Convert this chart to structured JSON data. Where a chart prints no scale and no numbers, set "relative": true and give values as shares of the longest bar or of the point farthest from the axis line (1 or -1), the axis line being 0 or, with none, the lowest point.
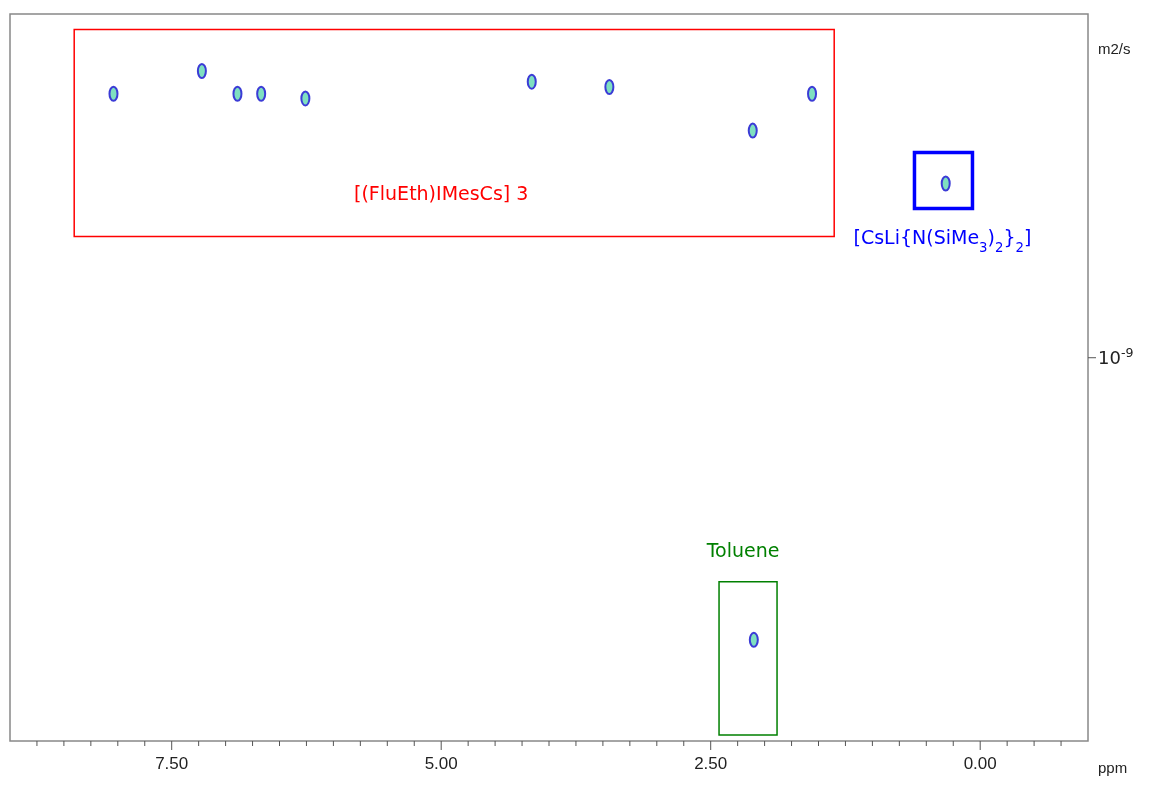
{
  "chart_data": {
    "type": "scatter",
    "xlabel": "ppm",
    "ylabel": "m2/s",
    "relative": true,
    "marker": "circle",
    "grid": false,
    "xlim": [
      9.0,
      -1.0
    ],
    "xticks": [
      {
        "value": 8.75,
        "label": null
      },
      {
        "value": 8.5,
        "label": null
      },
      {
        "value": 8.25,
        "label": null
      },
      {
        "value": 8.0,
        "label": null
      },
      {
        "value": 7.75,
        "label": null
      },
      {
        "value": 7.5,
        "label": "7.50"
      },
      {
        "value": 7.25,
        "label": null
      },
      {
        "value": 7.0,
        "label": null
      },
      {
        "value": 6.75,
        "label": null
      },
      {
        "value": 6.5,
        "label": null
      },
      {
        "value": 6.25,
        "label": null
      },
      {
        "value": 6.0,
        "label": null
      },
      {
        "value": 5.75,
        "label": null
      },
      {
        "value": 5.5,
        "label": null
      },
      {
        "value": 5.25,
        "label": null
      },
      {
        "value": 5.0,
        "label": "5.00"
      },
      {
        "value": 4.75,
        "label": null
      },
      {
        "value": 4.5,
        "label": null
      },
      {
        "value": 4.25,
        "label": null
      },
      {
        "value": 4.0,
        "label": null
      },
      {
        "value": 3.75,
        "label": null
      },
      {
        "value": 3.5,
        "label": null
      },
      {
        "value": 3.25,
        "label": null
      },
      {
        "value": 3.0,
        "label": null
      },
      {
        "value": 2.75,
        "label": null
      },
      {
        "value": 2.5,
        "label": "2.50"
      },
      {
        "value": 2.25,
        "label": null
      },
      {
        "value": 2.0,
        "label": null
      },
      {
        "value": 1.75,
        "label": null
      },
      {
        "value": 1.5,
        "label": null
      },
      {
        "value": 1.25,
        "label": null
      },
      {
        "value": 1.0,
        "label": null
      },
      {
        "value": 0.75,
        "label": null
      },
      {
        "value": 0.5,
        "label": null
      },
      {
        "value": 0.25,
        "label": null
      },
      {
        "value": 0.0,
        "label": "0.00"
      },
      {
        "value": -0.25,
        "label": null
      },
      {
        "value": -0.5,
        "label": null
      },
      {
        "value": -0.75,
        "label": null
      }
    ],
    "series": [
      {
        "color": "#3b3bd6",
        "x": [
          8.04,
          7.22,
          6.89,
          6.67,
          6.26,
          4.16,
          3.44,
          2.11,
          1.56,
          0.32,
          2.1
        ],
        "values": [
          0.966,
          1,
          0.966,
          0.966,
          0.959,
          0.984,
          0.976,
          0.911,
          0.966,
          0.832,
          0.151
        ]
      }
    ],
    "annotations": [
      "[(FluEth)IMesCs] 3",
      "[CsLi{N(SiMe$_{3}$)$_{2}$}$_{2}$]",
      "Toluene",
      "10$^{-9}$"
    ]
  }
}
